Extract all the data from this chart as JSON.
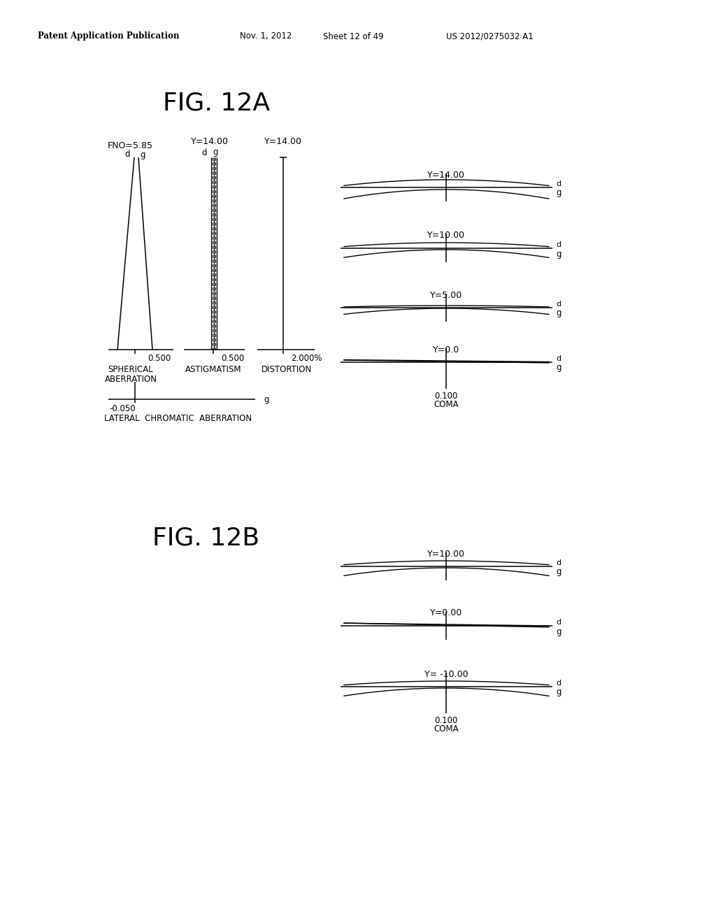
{
  "bg_color": "#ffffff",
  "fig12a_title": "FIG. 12A",
  "fig12b_title": "FIG. 12B",
  "header_text": "Patent Application Publication",
  "header_date": "Nov. 1, 2012",
  "header_sheet": "Sheet 12 of 49",
  "header_patent": "US 2012/0275032 A1",
  "sa_fno": "FNO=5.85",
  "ast_y": "Y=14.00",
  "dist_y": "Y=14.00",
  "sa_scale": "0.500",
  "ast_scale": "0.500",
  "dist_scale": "2.000%",
  "lca_scale": "-0.050",
  "coma_scale_12a": "0.100",
  "coma_scale_12b": "0.100",
  "coma_label": "COMA",
  "lca_label": "LATERAL  CHROMATIC  ABERRATION",
  "sa_label1": "SPHERICAL",
  "sa_label2": "ABERRATION",
  "ast_label": "ASTIGMATISM",
  "dist_label": "DISTORTION",
  "coma_y_12a": [
    "Y=14.00",
    "Y=10.00",
    "Y=5.00",
    "Y=0.0"
  ],
  "coma_y_12b": [
    "Y=10.00",
    "Y=0.00",
    "Y= -10.00"
  ]
}
